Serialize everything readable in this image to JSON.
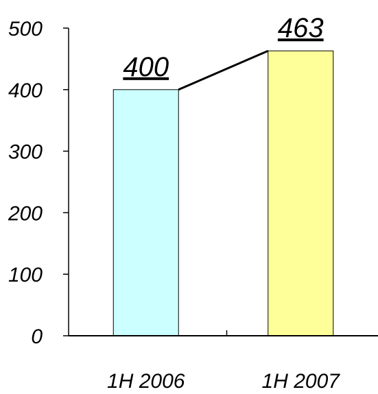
{
  "chart_data": {
    "type": "bar",
    "categories": [
      "1H 2006",
      "1H 2007"
    ],
    "values": [
      400,
      463
    ],
    "data_labels": [
      "400",
      "463"
    ],
    "y_ticks": [
      "0",
      "100",
      "200",
      "300",
      "400",
      "500"
    ],
    "ylim": [
      0,
      500
    ],
    "colors": [
      "#ccffff",
      "#ffff99"
    ],
    "connector_line": true,
    "grid": false,
    "legend": "none"
  }
}
